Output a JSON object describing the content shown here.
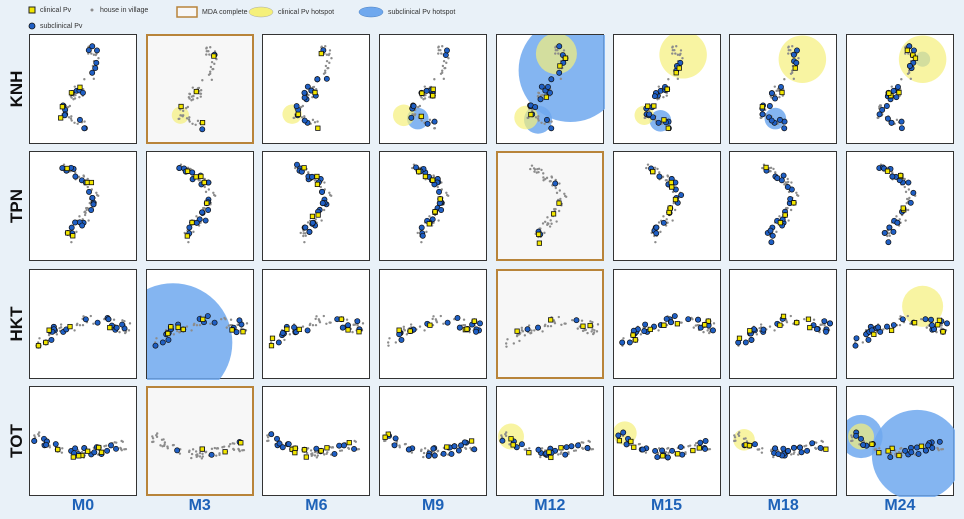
{
  "legend": {
    "clinical": "clinical Pv",
    "house": "house in village",
    "mda": "MDA complete",
    "clin_hotspot": "clinical Pv hotspot",
    "sub_hotspot": "subclinical Pv hotspot",
    "subclinical": "subclinical Pv"
  },
  "colors": {
    "clinical": "#f2e600",
    "subclinical": "#1f5fc4",
    "house": "#8c8c8c",
    "mda_border": "#b8843a",
    "clin_hotspot": "#f5f07a",
    "sub_hotspot": "#6fa8ee",
    "month_label": "#1e62b8"
  },
  "chart_data": {
    "type": "scatter",
    "rows": [
      "KNH",
      "TPN",
      "HKT",
      "TOT"
    ],
    "columns": [
      "M0",
      "M3",
      "M6",
      "M9",
      "M12",
      "M15",
      "M18",
      "M24"
    ],
    "mda_complete": [
      [
        0,
        1
      ],
      [
        1,
        4
      ],
      [
        2,
        4
      ],
      [
        3,
        1
      ]
    ],
    "clinical_hotspots": [
      {
        "row": 0,
        "col": 1,
        "x": 0.3,
        "y": 0.72,
        "r": 0.08
      },
      {
        "row": 0,
        "col": 2,
        "x": 0.27,
        "y": 0.72,
        "r": 0.09
      },
      {
        "row": 0,
        "col": 3,
        "x": 0.22,
        "y": 0.73,
        "r": 0.1
      },
      {
        "row": 0,
        "col": 4,
        "x": 0.55,
        "y": 0.17,
        "r": 0.19
      },
      {
        "row": 0,
        "col": 4,
        "x": 0.27,
        "y": 0.75,
        "r": 0.11
      },
      {
        "row": 0,
        "col": 5,
        "x": 0.64,
        "y": 0.18,
        "r": 0.22
      },
      {
        "row": 0,
        "col": 5,
        "x": 0.28,
        "y": 0.73,
        "r": 0.09
      },
      {
        "row": 0,
        "col": 6,
        "x": 0.67,
        "y": 0.22,
        "r": 0.22
      },
      {
        "row": 0,
        "col": 7,
        "x": 0.7,
        "y": 0.22,
        "r": 0.22
      },
      {
        "row": 2,
        "col": 7,
        "x": 0.7,
        "y": 0.33,
        "r": 0.19
      },
      {
        "row": 3,
        "col": 4,
        "x": 0.13,
        "y": 0.45,
        "r": 0.12
      },
      {
        "row": 3,
        "col": 5,
        "x": 0.1,
        "y": 0.42,
        "r": 0.11
      },
      {
        "row": 3,
        "col": 6,
        "x": 0.13,
        "y": 0.48,
        "r": 0.1
      },
      {
        "row": 3,
        "col": 7,
        "x": 0.13,
        "y": 0.45,
        "r": 0.12
      }
    ],
    "subclinical_hotspots": [
      {
        "row": 0,
        "col": 4,
        "x": 0.68,
        "y": 0.32,
        "r": 0.48
      },
      {
        "row": 0,
        "col": 4,
        "x": 0.38,
        "y": 0.77,
        "r": 0.13
      },
      {
        "row": 0,
        "col": 5,
        "x": 0.43,
        "y": 0.78,
        "r": 0.1
      },
      {
        "row": 0,
        "col": 6,
        "x": 0.42,
        "y": 0.76,
        "r": 0.1
      },
      {
        "row": 0,
        "col": 3,
        "x": 0.35,
        "y": 0.76,
        "r": 0.1
      },
      {
        "row": 0,
        "col": 7,
        "x": 0.7,
        "y": 0.22,
        "r": 0.07
      },
      {
        "row": 2,
        "col": 1,
        "x": 0.24,
        "y": 0.66,
        "r": 0.55
      },
      {
        "row": 3,
        "col": 7,
        "x": 0.13,
        "y": 0.45,
        "r": 0.2
      },
      {
        "row": 3,
        "col": 7,
        "x": 0.65,
        "y": 0.62,
        "r": 0.42
      }
    ],
    "xlabel": "",
    "ylabel": ""
  }
}
